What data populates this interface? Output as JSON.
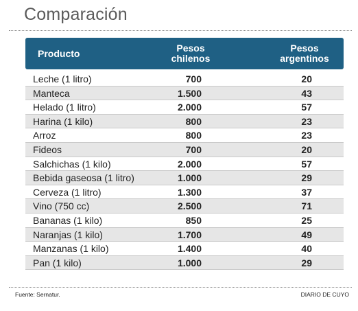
{
  "title": "Comparación",
  "header": {
    "product": "Producto",
    "chilean_1": "Pesos",
    "chilean_2": "chilenos",
    "argentine_1": "Pesos",
    "argentine_2": "argentinos"
  },
  "rows": [
    {
      "product": "Leche (1 litro)",
      "chilean": "700",
      "argentine": "20"
    },
    {
      "product": "Manteca",
      "chilean": "1.500",
      "argentine": "43"
    },
    {
      "product": "Helado (1 litro)",
      "chilean": "2.000",
      "argentine": "57"
    },
    {
      "product": "Harina (1 kilo)",
      "chilean": "800",
      "argentine": "23"
    },
    {
      "product": "Arroz",
      "chilean": "800",
      "argentine": "23"
    },
    {
      "product": "Fideos",
      "chilean": "700",
      "argentine": "20"
    },
    {
      "product": "Salchichas (1 kilo)",
      "chilean": "2.000",
      "argentine": "57"
    },
    {
      "product": "Bebida gaseosa (1 litro)",
      "chilean": "1.000",
      "argentine": "29"
    },
    {
      "product": "Cerveza (1 litro)",
      "chilean": "1.300",
      "argentine": "37"
    },
    {
      "product": "Vino (750 cc)",
      "chilean": "2.500",
      "argentine": "71"
    },
    {
      "product": "Bananas (1 kilo)",
      "chilean": "850",
      "argentine": "25"
    },
    {
      "product": "Naranjas (1 kilo)",
      "chilean": "1.700",
      "argentine": "49"
    },
    {
      "product": "Manzanas (1 kilo)",
      "chilean": "1.400",
      "argentine": "40"
    },
    {
      "product": "Pan (1 kilo)",
      "chilean": "1.000",
      "argentine": "29"
    }
  ],
  "footer": {
    "source": "Fuente: Sernatur.",
    "credit": "DIARIO DE CUYO"
  },
  "colors": {
    "header_bg": "#1f6084",
    "row_shade": "#e6e6e6"
  }
}
